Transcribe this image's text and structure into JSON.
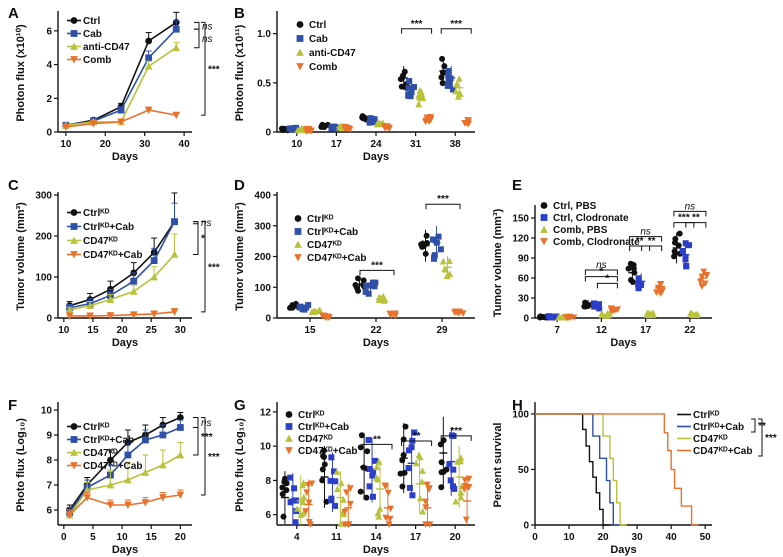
{
  "panels": [
    {
      "label": "A",
      "type": "line",
      "xlabel": "Days",
      "ylabel": "Photon flux (x10¹⁰)",
      "xlim": [
        8,
        42
      ],
      "ylim": [
        0,
        7
      ],
      "xticks": [
        "10",
        "20",
        "30",
        "40"
      ],
      "xtickvals": [
        10,
        20,
        30,
        40
      ],
      "yticks": [
        "0",
        "2",
        "4",
        "6"
      ],
      "ytickvals": [
        0,
        2,
        4,
        6
      ],
      "x": [
        10,
        17,
        24,
        31,
        38
      ],
      "series": [
        {
          "name": "Ctrl",
          "marker": "circle",
          "color": "#111111",
          "values": [
            0.4,
            0.7,
            1.5,
            5.4,
            6.5
          ],
          "err": [
            0.1,
            0.1,
            0.2,
            0.5,
            0.6
          ]
        },
        {
          "name": "Cab",
          "marker": "square",
          "color": "#2f4fa8",
          "values": [
            0.4,
            0.65,
            1.3,
            4.4,
            6.1
          ],
          "err": [
            0.1,
            0.1,
            0.2,
            0.4,
            0.5
          ]
        },
        {
          "name": "anti-CD47",
          "marker": "triangle",
          "color": "#b8c23a",
          "values": [
            0.4,
            0.6,
            0.6,
            3.9,
            5.0
          ],
          "err": [
            0.05,
            0.1,
            0.1,
            0.3,
            0.3
          ]
        },
        {
          "name": "Comb",
          "marker": "tridown",
          "color": "#e8722c",
          "values": [
            0.3,
            0.5,
            0.6,
            1.3,
            1.0
          ],
          "err": [
            0.05,
            0.05,
            0.05,
            0.1,
            0.1
          ]
        }
      ],
      "sig": [
        {
          "text": "ns",
          "italic": true
        },
        {
          "text": "ns",
          "italic": true
        },
        {
          "text": "***",
          "italic": false
        }
      ]
    },
    {
      "label": "B",
      "type": "scatter",
      "xlabel": "Days",
      "ylabel": "Photon flux (x10¹¹)",
      "ylim": [
        0,
        1.2
      ],
      "categories": [
        "10",
        "17",
        "24",
        "31",
        "38"
      ],
      "yticks": [
        "0",
        "0.5",
        "1.0"
      ],
      "ytickvals": [
        0,
        0.5,
        1.0
      ],
      "series": [
        {
          "name": "Ctrl",
          "marker": "circle",
          "color": "#111111",
          "means": [
            0.03,
            0.06,
            0.15,
            0.55,
            0.62
          ]
        },
        {
          "name": "Cab",
          "marker": "square",
          "color": "#2f4fa8",
          "means": [
            0.03,
            0.05,
            0.12,
            0.45,
            0.55
          ]
        },
        {
          "name": "anti-CD47",
          "marker": "triangle",
          "color": "#b8c23a",
          "means": [
            0.03,
            0.05,
            0.08,
            0.35,
            0.45
          ]
        },
        {
          "name": "Comb",
          "marker": "tridown",
          "color": "#e8722c",
          "means": [
            0.02,
            0.04,
            0.05,
            0.13,
            0.1
          ]
        }
      ],
      "sig": [
        "***",
        "***"
      ]
    },
    {
      "label": "C",
      "type": "line",
      "xlabel": "Days",
      "ylabel": "Tumor volume (mm³)",
      "xlim": [
        9,
        32
      ],
      "ylim": [
        0,
        300
      ],
      "xticks": [
        "10",
        "15",
        "20",
        "25",
        "30"
      ],
      "xtickvals": [
        10,
        15,
        20,
        25,
        30
      ],
      "yticks": [
        "0",
        "100",
        "200",
        "300"
      ],
      "ytickvals": [
        0,
        100,
        200,
        300
      ],
      "x": [
        11,
        14.5,
        18,
        22,
        25.5,
        29
      ],
      "series": [
        {
          "name": "Ctrlᴷᴰ",
          "marker": "circle",
          "color": "#111111",
          "values": [
            30,
            45,
            70,
            110,
            160,
            235
          ],
          "err": [
            10,
            15,
            20,
            25,
            35,
            70
          ]
        },
        {
          "name": "Ctrlᴷᴰ+Cab",
          "marker": "square",
          "color": "#2f4fa8",
          "values": [
            25,
            35,
            55,
            90,
            140,
            235
          ],
          "err": [
            8,
            12,
            15,
            20,
            30,
            45
          ]
        },
        {
          "name": "CD47ᴷᴰ",
          "marker": "triangle",
          "color": "#b8c23a",
          "values": [
            20,
            30,
            45,
            65,
            100,
            155
          ],
          "err": [
            6,
            10,
            12,
            15,
            25,
            50
          ]
        },
        {
          "name": "CD47ᴷᴰ+Cab",
          "marker": "tridown",
          "color": "#e8722c",
          "values": [
            5,
            5,
            6,
            8,
            10,
            15
          ],
          "err": [
            2,
            2,
            3,
            3,
            5,
            8
          ]
        }
      ],
      "sig": [
        {
          "text": "ns",
          "italic": true
        },
        {
          "text": "*",
          "italic": false
        },
        {
          "text": "***",
          "italic": false
        }
      ]
    },
    {
      "label": "D",
      "type": "scatter",
      "xlabel": "Days",
      "ylabel": "Tumor volume (mm³)",
      "ylim": [
        0,
        400
      ],
      "categories": [
        "15",
        "22",
        "29"
      ],
      "yticks": [
        "0",
        "100",
        "200",
        "300",
        "400"
      ],
      "ytickvals": [
        0,
        100,
        200,
        300,
        400
      ],
      "series": [
        {
          "name": "Ctrlᴷᴰ",
          "marker": "circle",
          "color": "#111111",
          "means": [
            40,
            110,
            235
          ]
        },
        {
          "name": "Ctrlᴷᴰ+Cab",
          "marker": "square",
          "color": "#2f4fa8",
          "means": [
            35,
            100,
            245
          ]
        },
        {
          "name": "CD47ᴷᴰ",
          "marker": "triangle",
          "color": "#b8c23a",
          "means": [
            25,
            60,
            165
          ]
        },
        {
          "name": "CD47ᴷᴰ+Cab",
          "marker": "tridown",
          "color": "#e8722c",
          "means": [
            5,
            10,
            20
          ]
        }
      ],
      "sig": [
        "***",
        "***"
      ]
    },
    {
      "label": "E",
      "type": "scatter",
      "xlabel": "Days",
      "ylabel": "Tumor volume (mm³)",
      "ylim": [
        0,
        165
      ],
      "categories": [
        "7",
        "12",
        "17",
        "22"
      ],
      "yticks": [
        "0",
        "30",
        "60",
        "90",
        "120",
        "150"
      ],
      "ytickvals": [
        0,
        30,
        60,
        90,
        120,
        150
      ],
      "series": [
        {
          "name": "Ctrl, PBS",
          "marker": "circle",
          "color": "#111111",
          "means": [
            1,
            22,
            68,
            105
          ]
        },
        {
          "name": "Ctrl, Clodronate",
          "marker": "square",
          "color": "#2c3fc9",
          "means": [
            1,
            18,
            55,
            95
          ]
        },
        {
          "name": "Comb, PBS",
          "marker": "triangle",
          "color": "#b8c23a",
          "means": [
            1,
            5,
            6,
            6
          ]
        },
        {
          "name": "Comb, Clodronate",
          "marker": "tridown",
          "color": "#e8722c",
          "means": [
            1,
            12,
            45,
            60
          ]
        }
      ],
      "sig": [
        "ns",
        "*",
        "*",
        "ns",
        "**",
        "**",
        "ns",
        "***",
        "**"
      ]
    },
    {
      "label": "F",
      "type": "line",
      "xlabel": "Days",
      "ylabel": "Photo flux (Log₁₀)",
      "xlim": [
        -1,
        22
      ],
      "ylim": [
        5.4,
        10.2
      ],
      "xticks": [
        "0",
        "5",
        "10",
        "15",
        "20"
      ],
      "xtickvals": [
        0,
        5,
        10,
        15,
        20
      ],
      "yticks": [
        "6",
        "7",
        "8",
        "9",
        "10"
      ],
      "ytickvals": [
        6,
        7,
        8,
        9,
        10
      ],
      "x": [
        1,
        4,
        8,
        11,
        14,
        17,
        20
      ],
      "series": [
        {
          "name": "Ctrlᴷᴰ",
          "marker": "circle",
          "color": "#111111",
          "values": [
            6.0,
            7.0,
            8.0,
            8.7,
            9.0,
            9.4,
            9.7
          ],
          "err": [
            0.2,
            0.3,
            0.4,
            0.5,
            0.4,
            0.3,
            0.2
          ]
        },
        {
          "name": "Ctrlᴷᴰ+Cab",
          "marker": "square",
          "color": "#2f4fa8",
          "values": [
            5.9,
            6.9,
            7.4,
            8.2,
            8.8,
            9.0,
            9.3
          ],
          "err": [
            0.2,
            0.3,
            0.4,
            0.5,
            0.4,
            0.4,
            0.3
          ]
        },
        {
          "name": "CD47ᴷᴰ",
          "marker": "triangle",
          "color": "#b8c23a",
          "values": [
            5.8,
            6.8,
            7.0,
            7.2,
            7.5,
            7.8,
            8.2
          ],
          "err": [
            0.2,
            0.3,
            0.6,
            0.7,
            0.7,
            0.6,
            0.5
          ]
        },
        {
          "name": "CD47ᴷᴰ+Cab",
          "marker": "tridown",
          "color": "#e8722c",
          "values": [
            5.8,
            6.5,
            6.2,
            6.2,
            6.3,
            6.5,
            6.6
          ],
          "err": [
            0.2,
            0.2,
            0.2,
            0.2,
            0.2,
            0.2,
            0.2
          ]
        }
      ],
      "sig": [
        {
          "text": "ns",
          "italic": true
        },
        {
          "text": "***",
          "italic": false
        },
        {
          "text": "***",
          "italic": false
        }
      ]
    },
    {
      "label": "G",
      "type": "scatter",
      "xlabel": "Days",
      "ylabel": "Photo flux (Log₁₀)",
      "ylim": [
        5.4,
        12.4
      ],
      "categories": [
        "4",
        "11",
        "14",
        "17",
        "20"
      ],
      "yticks": [
        "6",
        "8",
        "10",
        "12"
      ],
      "ytickvals": [
        6,
        8,
        10,
        12
      ],
      "series": [
        {
          "name": "Ctrlᴷᴰ",
          "marker": "circle",
          "color": "#111111",
          "means": [
            7.0,
            8.2,
            8.8,
            9.3,
            9.6
          ]
        },
        {
          "name": "Ctrlᴷᴰ+Cab",
          "marker": "square",
          "color": "#2c3fc9",
          "means": [
            6.9,
            7.9,
            8.6,
            9.0,
            9.1
          ]
        },
        {
          "name": "CD47ᴷᴰ",
          "marker": "triangle",
          "color": "#b8c23a",
          "means": [
            6.8,
            7.0,
            7.5,
            7.8,
            8.2
          ]
        },
        {
          "name": "CD47ᴷᴰ+Cab",
          "marker": "tridown",
          "color": "#e8722c",
          "means": [
            6.6,
            6.4,
            6.4,
            6.4,
            6.8
          ]
        }
      ],
      "sig": [
        "**",
        "**",
        "***"
      ]
    },
    {
      "label": "H",
      "type": "survival",
      "xlabel": "Days",
      "ylabel": "Percent survival",
      "xlim": [
        0,
        52
      ],
      "ylim": [
        0,
        108
      ],
      "xticks": [
        "0",
        "10",
        "20",
        "30",
        "40",
        "50"
      ],
      "xtickvals": [
        0,
        10,
        20,
        30,
        40,
        50
      ],
      "yticks": [
        "0",
        "50",
        "100"
      ],
      "ytickvals": [
        0,
        50,
        100
      ],
      "series": [
        {
          "name": "Ctrlᴷᴰ",
          "color": "#111111",
          "steps": [
            [
              0,
              100
            ],
            [
              14,
              100
            ],
            [
              14,
              86
            ],
            [
              15,
              86
            ],
            [
              15,
              71
            ],
            [
              16,
              71
            ],
            [
              16,
              57
            ],
            [
              17,
              57
            ],
            [
              17,
              43
            ],
            [
              18,
              43
            ],
            [
              18,
              29
            ],
            [
              19,
              29
            ],
            [
              19,
              14
            ],
            [
              20,
              14
            ],
            [
              20,
              0
            ],
            [
              22,
              0
            ]
          ]
        },
        {
          "name": "Ctrlᴷᴰ+Cab",
          "color": "#2f4fa8",
          "steps": [
            [
              0,
              100
            ],
            [
              17,
              100
            ],
            [
              17,
              80
            ],
            [
              19,
              80
            ],
            [
              19,
              60
            ],
            [
              21,
              60
            ],
            [
              21,
              40
            ],
            [
              22,
              40
            ],
            [
              22,
              20
            ],
            [
              23,
              20
            ],
            [
              23,
              0
            ],
            [
              25,
              0
            ]
          ]
        },
        {
          "name": "CD47ᴷᴰ",
          "color": "#b8c23a",
          "steps": [
            [
              0,
              100
            ],
            [
              20,
              100
            ],
            [
              20,
              80
            ],
            [
              22,
              80
            ],
            [
              22,
              60
            ],
            [
              23,
              60
            ],
            [
              23,
              40
            ],
            [
              24,
              40
            ],
            [
              24,
              20
            ],
            [
              25,
              20
            ],
            [
              25,
              0
            ],
            [
              27,
              0
            ]
          ]
        },
        {
          "name": "CD47ᴷᴰ+Cab",
          "color": "#e8722c",
          "steps": [
            [
              0,
              100
            ],
            [
              38,
              100
            ],
            [
              38,
              83
            ],
            [
              39,
              83
            ],
            [
              39,
              67
            ],
            [
              40,
              67
            ],
            [
              40,
              50
            ],
            [
              41,
              50
            ],
            [
              41,
              33
            ],
            [
              43,
              33
            ],
            [
              43,
              17
            ],
            [
              46,
              17
            ],
            [
              46,
              0
            ],
            [
              48,
              0
            ]
          ]
        }
      ],
      "sig": [
        "**",
        "***"
      ]
    }
  ]
}
